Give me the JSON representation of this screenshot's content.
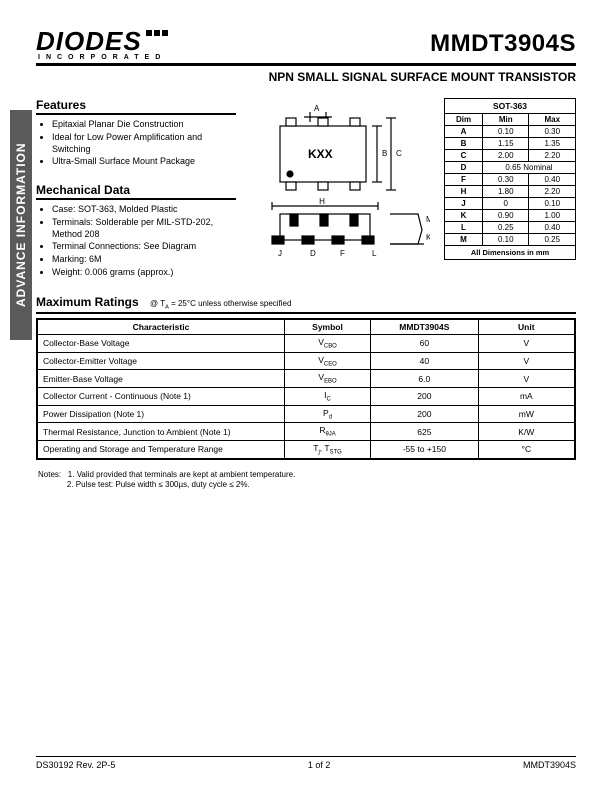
{
  "logo": {
    "name": "DIODES",
    "sub": "INCORPORATED"
  },
  "part_number": "MMDT3904S",
  "subtitle": "NPN SMALL SIGNAL SURFACE MOUNT TRANSISTOR",
  "side_tab": "ADVANCE INFORMATION",
  "sections": {
    "features_title": "Features",
    "features": [
      "Epitaxial Planar Die Construction",
      "Ideal for Low Power Amplification and Switching",
      "Ultra-Small Surface Mount Package"
    ],
    "mechdata_title": "Mechanical Data",
    "mechdata": [
      "Case: SOT-363, Molded Plastic",
      "Terminals: Solderable per MIL-STD-202, Method 208",
      "Terminal Connections: See Diagram",
      "Marking: 6M",
      "Weight: 0.006 grams (approx.)"
    ]
  },
  "package_marking": "KXX",
  "dim_table": {
    "caption": "SOT-363",
    "headers": [
      "Dim",
      "Min",
      "Max"
    ],
    "rows": [
      [
        "A",
        "0.10",
        "0.30"
      ],
      [
        "B",
        "1.15",
        "1.35"
      ],
      [
        "C",
        "2.00",
        "2.20"
      ],
      [
        "D",
        "0.65 Nominal",
        ""
      ],
      [
        "F",
        "0.30",
        "0.40"
      ],
      [
        "H",
        "1.80",
        "2.20"
      ],
      [
        "J",
        "0",
        "0.10"
      ],
      [
        "K",
        "0.90",
        "1.00"
      ],
      [
        "L",
        "0.25",
        "0.40"
      ],
      [
        "M",
        "0.10",
        "0.25"
      ]
    ],
    "footer": "All Dimensions in mm"
  },
  "ratings": {
    "title": "Maximum Ratings",
    "condition": "@ TA = 25°C unless otherwise specified",
    "headers": [
      "Characteristic",
      "Symbol",
      "MMDT3904S",
      "Unit"
    ],
    "rows": [
      [
        "Collector-Base Voltage",
        "VCBO",
        "60",
        "V"
      ],
      [
        "Collector-Emitter Voltage",
        "VCEO",
        "40",
        "V"
      ],
      [
        "Emitter-Base Voltage",
        "VEBO",
        "6.0",
        "V"
      ],
      [
        "Collector Current - Continuous (Note 1)",
        "IC",
        "200",
        "mA"
      ],
      [
        "Power Dissipation (Note 1)",
        "Pd",
        "200",
        "mW"
      ],
      [
        "Thermal Resistance, Junction to Ambient (Note 1)",
        "RθJA",
        "625",
        "K/W"
      ],
      [
        "Operating and Storage and Temperature Range",
        "Tj, TSTG",
        "-55 to +150",
        "°C"
      ]
    ]
  },
  "notes": {
    "label": "Notes:",
    "items": [
      "1.   Valid provided that terminals are kept at ambient temperature.",
      "2.   Pulse test:  Pulse width ≤ 300µs, duty cycle ≤ 2%."
    ]
  },
  "footer": {
    "left": "DS30192 Rev. 2P-5",
    "center": "1 of 2",
    "right": "MMDT3904S"
  },
  "colors": {
    "rule": "#000000",
    "sidebar": "#5a5a5a",
    "text": "#000000",
    "bg": "#ffffff"
  }
}
